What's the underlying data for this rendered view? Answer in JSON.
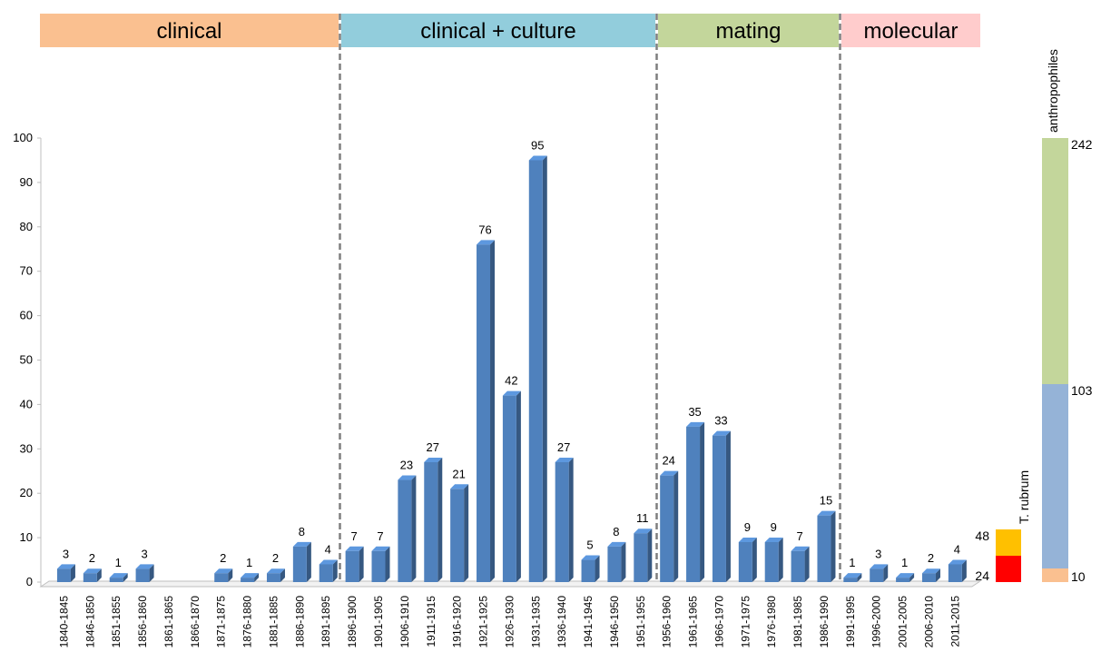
{
  "chart_data": {
    "type": "bar",
    "title": "",
    "xlabel": "",
    "ylabel": "",
    "ylim": [
      0,
      100
    ],
    "yticks": [
      0,
      10,
      20,
      30,
      40,
      50,
      60,
      70,
      80,
      90,
      100
    ],
    "grid": false,
    "bar_color": "#4F81BD",
    "categories": [
      "1840-1845",
      "1846-1850",
      "1851-1855",
      "1856-1860",
      "1861-1865",
      "1866-1870",
      "1871-1875",
      "1876-1880",
      "1881-1885",
      "1886-1890",
      "1891-1895",
      "1896-1900",
      "1901-1905",
      "1906-1910",
      "1911-1915",
      "1916-1920",
      "1921-1925",
      "1926-1930",
      "1931-1935",
      "1936-1940",
      "1941-1945",
      "1946-1950",
      "1951-1955",
      "1956-1960",
      "1961-1965",
      "1966-1970",
      "1971-1975",
      "1976-1980",
      "1981-1985",
      "1986-1990",
      "1991-1995",
      "1996-2000",
      "2001-2005",
      "2006-2010",
      "2011-2015"
    ],
    "values": [
      3,
      2,
      1,
      3,
      null,
      null,
      2,
      1,
      2,
      8,
      4,
      7,
      7,
      23,
      27,
      21,
      76,
      42,
      95,
      27,
      5,
      8,
      11,
      24,
      35,
      33,
      9,
      9,
      7,
      15,
      1,
      3,
      1,
      2,
      4
    ],
    "eras": [
      {
        "label": "clinical",
        "color": "#FAC090",
        "start": "1840-1845",
        "end": "1891-1895"
      },
      {
        "label": "clinical + culture",
        "color": "#92CDDC",
        "start": "1896-1900",
        "end": "1951-1955"
      },
      {
        "label": "mating",
        "color": "#C3D69B",
        "start": "1956-1960",
        "end": "1986-1990"
      },
      {
        "label": "molecular",
        "color": "#FFCCCC",
        "start": "1991-1995",
        "end": "2011-2015"
      }
    ],
    "side_bars": [
      {
        "name": "T. rubrum",
        "segments": [
          {
            "label": "24",
            "value": 24,
            "color": "#FF0000"
          },
          {
            "label": "48",
            "value": 48,
            "color": "#FFC000"
          }
        ]
      },
      {
        "name": "anthropophiles",
        "segments": [
          {
            "label": "10",
            "value": 10,
            "color": "#FAC090"
          },
          {
            "label": "103",
            "value": 103,
            "color": "#95B3D7"
          },
          {
            "label": "242",
            "value": 242,
            "color": "#C3D69B"
          }
        ]
      }
    ]
  }
}
